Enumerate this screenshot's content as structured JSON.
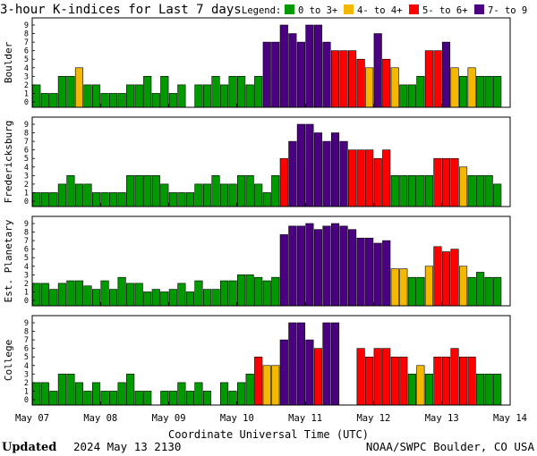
{
  "title": "3-hour K-indices for Last 7 days",
  "legend": {
    "label": "Legend:",
    "items": [
      {
        "text": "0 to 3+",
        "color": "#009900"
      },
      {
        "text": "4- to 4+",
        "color": "#f5b800"
      },
      {
        "text": "5- to 6+",
        "color": "#ff0000"
      },
      {
        "text": "7- to 9",
        "color": "#4b0082"
      }
    ]
  },
  "footer": {
    "updated_label": "Updated",
    "updated_value": "2024 May 13 2130",
    "source": "NOAA/SWPC Boulder, CO USA"
  },
  "chart_data": {
    "type": "bar",
    "xlabel": "Coordinate Universal Time (UTC)",
    "x_ticks": [
      "May 07",
      "May 08",
      "May 09",
      "May 10",
      "May 11",
      "May 12",
      "May 13",
      "May 14"
    ],
    "ylim": [
      0,
      9
    ],
    "y_ticks": [
      "0",
      "1",
      "2",
      "3",
      "4",
      "5",
      "6",
      "7",
      "8",
      "9"
    ],
    "slots_per_day": 8,
    "days": 7,
    "colors": {
      "quiet": "#009900",
      "active": "#f5b800",
      "storm": "#ff0000",
      "severe": "#4b0082"
    },
    "panels": [
      {
        "ylabel": "Boulder",
        "values": [
          2,
          1,
          1,
          3,
          3,
          4,
          2,
          2,
          1,
          1,
          1,
          2,
          2,
          3,
          1,
          3,
          1,
          2,
          0,
          2,
          2,
          3,
          2,
          3,
          3,
          2,
          3,
          7,
          7,
          9,
          8,
          7,
          9,
          9,
          7,
          6,
          6,
          6,
          5,
          4,
          8,
          5,
          4,
          2,
          2,
          3,
          6,
          6,
          7,
          4,
          3,
          4,
          3,
          3,
          3,
          0
        ]
      },
      {
        "ylabel": "Fredericksburg",
        "values": [
          1,
          1,
          1,
          2,
          3,
          2,
          2,
          1,
          1,
          1,
          1,
          3,
          3,
          3,
          3,
          2,
          1,
          1,
          1,
          2,
          2,
          3,
          2,
          2,
          3,
          3,
          2,
          1,
          3,
          5,
          7,
          9,
          9,
          8,
          7,
          8,
          7,
          6,
          6,
          6,
          5,
          6,
          3,
          3,
          3,
          3,
          3,
          5,
          5,
          5,
          4,
          3,
          3,
          3,
          2,
          0
        ]
      },
      {
        "ylabel": "Est. Planetary",
        "values": [
          2,
          2,
          1.3,
          2,
          2.3,
          2.3,
          1.7,
          1.3,
          2.3,
          1.3,
          2.7,
          2,
          2,
          1,
          1.3,
          1,
          1.3,
          2,
          1,
          2.3,
          1.3,
          1.3,
          2.3,
          2.3,
          3,
          3,
          2.7,
          2.3,
          2.7,
          7.7,
          8.7,
          8.7,
          9,
          8.3,
          8.7,
          9,
          8.7,
          8.3,
          7.3,
          7.3,
          6.7,
          7,
          3.7,
          3.7,
          2.7,
          2.7,
          4,
          6.3,
          5.7,
          6,
          4,
          2.7,
          3.3,
          2.7,
          2.7
        ]
      },
      {
        "ylabel": "College",
        "values": [
          2,
          2,
          1,
          3,
          3,
          2,
          1,
          2,
          1,
          1,
          2,
          3,
          1,
          1,
          0,
          1,
          1,
          2,
          1,
          2,
          1,
          0,
          2,
          1,
          2,
          3,
          5,
          4,
          4,
          7,
          9,
          9,
          7,
          6,
          9,
          9,
          0,
          0,
          6,
          5,
          6,
          6,
          5,
          5,
          3,
          4,
          3,
          5,
          5,
          6,
          5,
          5,
          3,
          3,
          3,
          0
        ]
      }
    ]
  }
}
